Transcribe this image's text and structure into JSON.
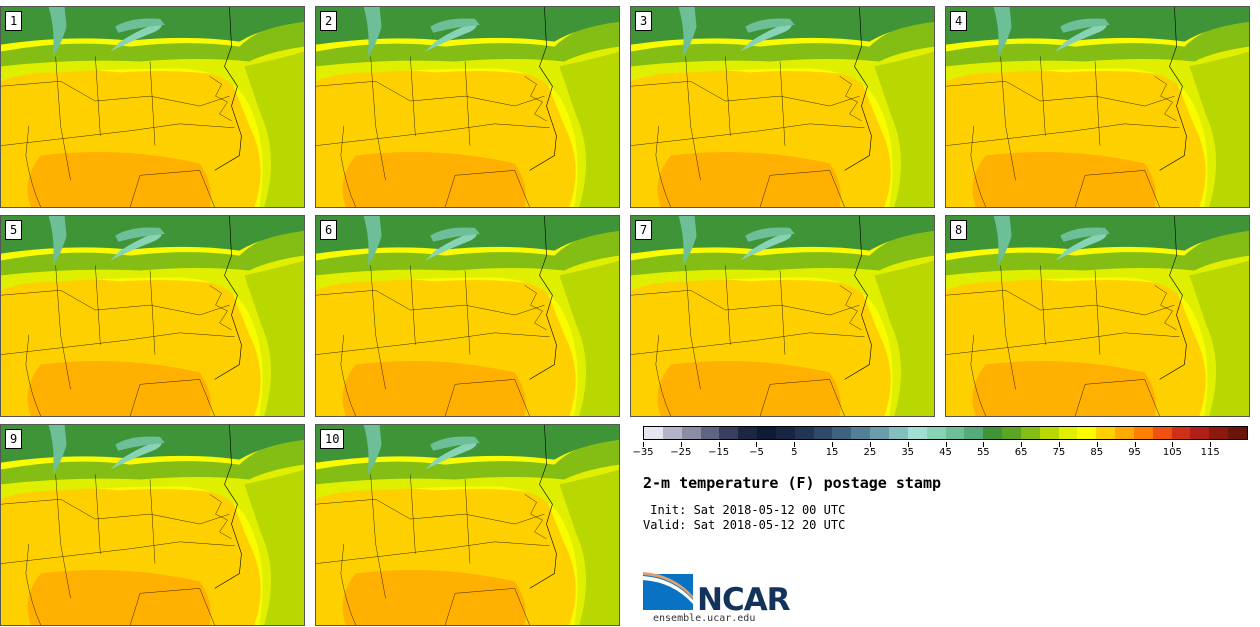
{
  "members": [
    {
      "label": "1"
    },
    {
      "label": "2"
    },
    {
      "label": "3"
    },
    {
      "label": "4"
    },
    {
      "label": "5"
    },
    {
      "label": "6"
    },
    {
      "label": "7"
    },
    {
      "label": "8"
    },
    {
      "label": "9"
    },
    {
      "label": "10"
    }
  ],
  "colorbar": {
    "colors": [
      "#e6e6f0",
      "#b4b4c8",
      "#8c8ca5",
      "#5f6482",
      "#3a3f5f",
      "#1e2742",
      "#0f1a33",
      "#172541",
      "#233554",
      "#2f4a68",
      "#3f6280",
      "#537f97",
      "#6a9eab",
      "#85bfbd",
      "#9fe0d3",
      "#86d3b5",
      "#6cbf96",
      "#54aa78",
      "#3f9438",
      "#5aa624",
      "#84bd14",
      "#b9d700",
      "#e0ee00",
      "#fbfb00",
      "#ffd000",
      "#ffaa00",
      "#ff8000",
      "#f05010",
      "#d03018",
      "#b02018",
      "#8c1810",
      "#6a140c"
    ],
    "tick_labels": [
      "−35",
      "−25",
      "−15",
      "−5",
      "5",
      "15",
      "25",
      "35",
      "45",
      "55",
      "65",
      "75",
      "85",
      "95",
      "105",
      "115"
    ]
  },
  "title": "2-m temperature (F) postage stamp",
  "init_text": " Init: Sat 2018-05-12 00 UTC",
  "valid_text": "Valid: Sat 2018-05-12 20 UTC",
  "logo_text": "NCAR",
  "url_text": "ensemble.ucar.edu"
}
